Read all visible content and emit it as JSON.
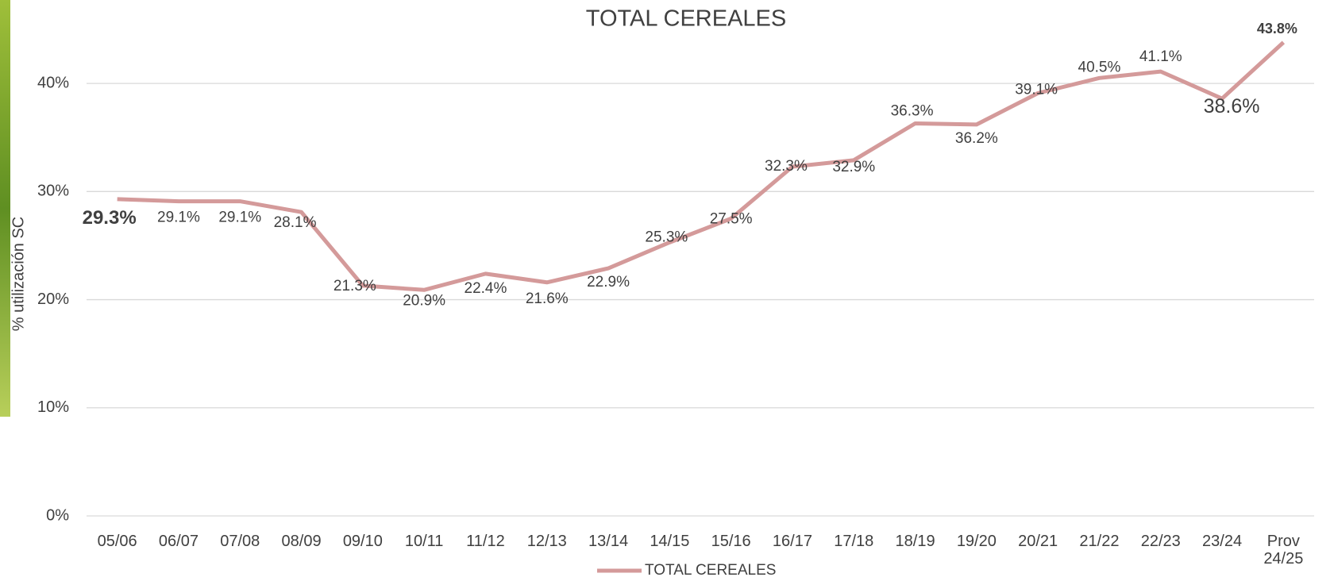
{
  "chart_data": {
    "type": "line",
    "title": "TOTAL CEREALES",
    "y_label": "% utilización  SC",
    "categories": [
      "05/06",
      "06/07",
      "07/08",
      "08/09",
      "09/10",
      "10/11",
      "11/12",
      "12/13",
      "13/14",
      "14/15",
      "15/16",
      "16/17",
      "17/18",
      "18/19",
      "19/20",
      "20/21",
      "21/22",
      "22/23",
      "23/24",
      "Prov 24/25"
    ],
    "series": [
      {
        "name": "TOTAL CEREALES",
        "color": "#d49a9a",
        "values": [
          29.3,
          29.1,
          29.1,
          28.1,
          21.3,
          20.9,
          22.4,
          21.6,
          22.9,
          25.3,
          27.5,
          32.3,
          32.9,
          36.3,
          36.2,
          39.1,
          40.5,
          41.1,
          38.6,
          43.8
        ],
        "value_labels": [
          "29.3%",
          "29.1%",
          "29.1%",
          "28.1%",
          "21.3%",
          "20.9%",
          "22.4%",
          "21.6%",
          "22.9%",
          "25.3%",
          "27.5%",
          "32.3%",
          "32.9%",
          "36.3%",
          "36.2%",
          "39.1%",
          "40.5%",
          "41.1%",
          "38.6%",
          "43.8%"
        ]
      }
    ],
    "ylim": [
      0,
      45
    ],
    "yticks": [
      {
        "value": 0,
        "label": "0%"
      },
      {
        "value": 10,
        "label": "10%"
      },
      {
        "value": 20,
        "label": "20%"
      },
      {
        "value": 30,
        "label": "30%"
      },
      {
        "value": 40,
        "label": "40%"
      }
    ],
    "grid": true,
    "legend": "bottom"
  }
}
